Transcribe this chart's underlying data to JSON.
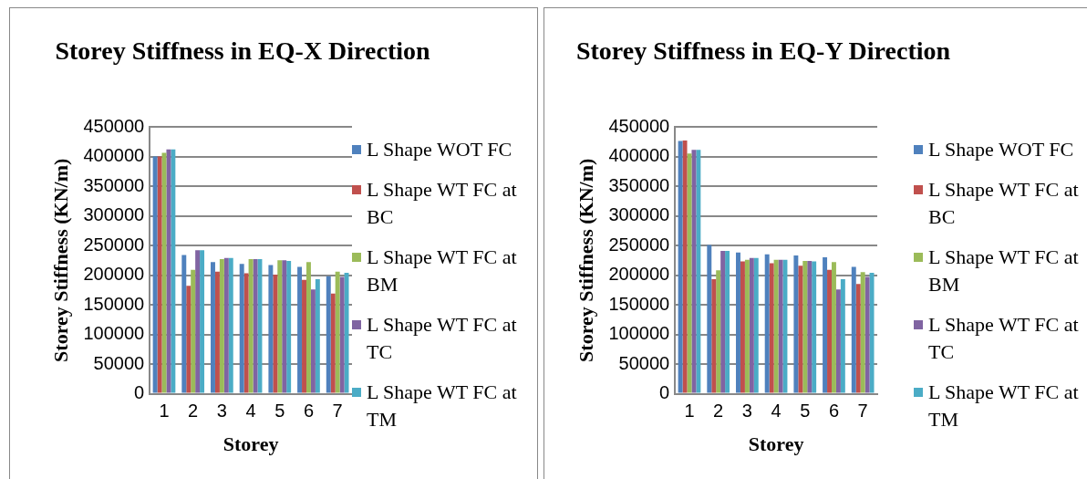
{
  "chart_data": [
    {
      "type": "bar",
      "title": "Storey Stiffness in EQ-X Direction",
      "xlabel": "Storey",
      "ylabel": "Storey Stiffness (KN/m)",
      "categories": [
        "1",
        "2",
        "3",
        "4",
        "5",
        "6",
        "7"
      ],
      "ylim": [
        0,
        450000
      ],
      "yticks": [
        0,
        50000,
        100000,
        150000,
        200000,
        250000,
        300000,
        350000,
        400000,
        450000
      ],
      "grid": "y",
      "legend": "right",
      "series": [
        {
          "name": "L Shape WOT FC",
          "color": "#4f81bd",
          "values": [
            400000,
            234000,
            222000,
            219000,
            217000,
            214000,
            198000
          ]
        },
        {
          "name": "L Shape WT FC at BC",
          "color": "#c0504d",
          "values": [
            400000,
            182000,
            206000,
            203000,
            201000,
            192000,
            169000
          ]
        },
        {
          "name": "L Shape WT FC at BM",
          "color": "#9bbb59",
          "values": [
            406000,
            209000,
            227000,
            227000,
            225000,
            222000,
            206000
          ]
        },
        {
          "name": "L Shape WT FC at TC",
          "color": "#8064a2",
          "values": [
            412000,
            242000,
            229000,
            227000,
            225000,
            176000,
            197000
          ]
        },
        {
          "name": "L Shape WT FC at TM",
          "color": "#4bacc6",
          "values": [
            412000,
            242000,
            229000,
            227000,
            224000,
            193000,
            204000
          ]
        }
      ]
    },
    {
      "type": "bar",
      "title": "Storey Stiffness in EQ-Y Direction",
      "xlabel": "Storey",
      "ylabel": "Storey Stiffness (KN/m)",
      "categories": [
        "1",
        "2",
        "3",
        "4",
        "5",
        "6",
        "7"
      ],
      "ylim": [
        0,
        450000
      ],
      "yticks": [
        0,
        50000,
        100000,
        150000,
        200000,
        250000,
        300000,
        350000,
        400000,
        450000
      ],
      "grid": "y",
      "legend": "right",
      "series": [
        {
          "name": "L Shape WOT FC",
          "color": "#4f81bd",
          "values": [
            426000,
            251000,
            238000,
            235000,
            233000,
            230000,
            214000
          ]
        },
        {
          "name": "L Shape WT FC at BC",
          "color": "#c0504d",
          "values": [
            427000,
            193000,
            223000,
            220000,
            216000,
            209000,
            185000
          ]
        },
        {
          "name": "L Shape WT FC at BM",
          "color": "#9bbb59",
          "values": [
            405000,
            208000,
            226000,
            226000,
            224000,
            222000,
            205000
          ]
        },
        {
          "name": "L Shape WT FC at TC",
          "color": "#8064a2",
          "values": [
            411000,
            241000,
            229000,
            226000,
            224000,
            176000,
            197000
          ]
        },
        {
          "name": "L Shape WT FC at TM",
          "color": "#4bacc6",
          "values": [
            411000,
            241000,
            229000,
            226000,
            223000,
            193000,
            204000
          ]
        }
      ]
    }
  ]
}
